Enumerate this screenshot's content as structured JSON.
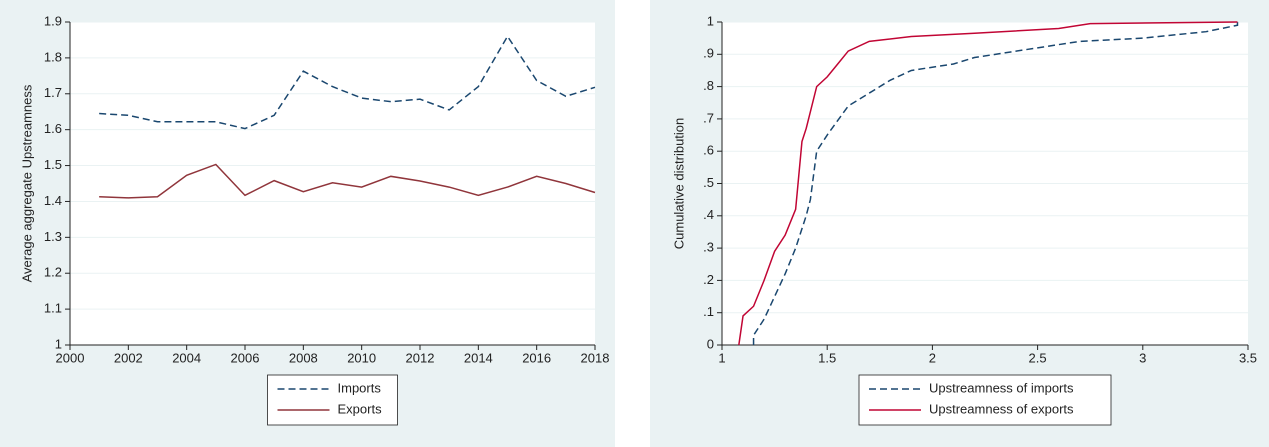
{
  "chart_data": [
    {
      "type": "line",
      "ylabel": "Average aggregate Upstreamness",
      "x": [
        2001,
        2002,
        2003,
        2004,
        2005,
        2006,
        2007,
        2008,
        2009,
        2010,
        2011,
        2012,
        2013,
        2014,
        2015,
        2016,
        2017,
        2018
      ],
      "xlim": [
        2000,
        2018
      ],
      "xticks": [
        2000,
        2002,
        2004,
        2006,
        2008,
        2010,
        2012,
        2014,
        2016,
        2018
      ],
      "ylim": [
        1,
        1.9
      ],
      "yticks": [
        1,
        1.1,
        1.2,
        1.3,
        1.4,
        1.5,
        1.6,
        1.7,
        1.8,
        1.9
      ],
      "grid": true,
      "series": [
        {
          "name": "Imports",
          "color": "#1a476f",
          "dash": true,
          "values": [
            1.645,
            1.64,
            1.622,
            1.622,
            1.622,
            1.603,
            1.64,
            1.763,
            1.72,
            1.688,
            1.678,
            1.685,
            1.655,
            1.72,
            1.86,
            1.737,
            1.693,
            1.718
          ]
        },
        {
          "name": "Exports",
          "color": "#90353b",
          "dash": false,
          "values": [
            1.413,
            1.41,
            1.413,
            1.473,
            1.503,
            1.417,
            1.458,
            1.427,
            1.452,
            1.44,
            1.47,
            1.457,
            1.44,
            1.417,
            1.44,
            1.47,
            1.45,
            1.425
          ]
        }
      ]
    },
    {
      "type": "line",
      "ylabel": "Cumulative distribution",
      "xlim": [
        1,
        3.5
      ],
      "xticks": [
        1,
        1.5,
        2,
        2.5,
        3,
        3.5
      ],
      "ylim": [
        0,
        1
      ],
      "yticks": [
        0,
        {
          "value": 0.1,
          "label": ".1"
        },
        {
          "value": 0.2,
          "label": ".2"
        },
        {
          "value": 0.3,
          "label": ".3"
        },
        {
          "value": 0.4,
          "label": ".4"
        },
        {
          "value": 0.5,
          "label": ".5"
        },
        {
          "value": 0.6,
          "label": ".6"
        },
        {
          "value": 0.7,
          "label": ".7"
        },
        {
          "value": 0.8,
          "label": ".8"
        },
        {
          "value": 0.9,
          "label": ".9"
        },
        1
      ],
      "grid": true,
      "series": [
        {
          "name": "Upstreamness of imports",
          "color": "#1a476f",
          "dash": true,
          "x": [
            1.15,
            1.15,
            1.2,
            1.25,
            1.3,
            1.35,
            1.4,
            1.42,
            1.45,
            1.5,
            1.6,
            1.7,
            1.8,
            1.9,
            2.1,
            2.2,
            2.5,
            2.7,
            3.0,
            3.3,
            3.45,
            3.45
          ],
          "values": [
            0,
            0.03,
            0.08,
            0.15,
            0.22,
            0.3,
            0.4,
            0.45,
            0.6,
            0.65,
            0.74,
            0.78,
            0.82,
            0.85,
            0.87,
            0.89,
            0.92,
            0.94,
            0.95,
            0.97,
            0.99,
            1
          ]
        },
        {
          "name": "Upstreamness of exports",
          "color": "#c10534",
          "dash": false,
          "x": [
            1.08,
            1.1,
            1.15,
            1.2,
            1.25,
            1.3,
            1.35,
            1.38,
            1.4,
            1.45,
            1.5,
            1.55,
            1.6,
            1.7,
            1.9,
            2.2,
            2.6,
            2.75,
            3.45
          ],
          "values": [
            0,
            0.09,
            0.12,
            0.2,
            0.29,
            0.34,
            0.42,
            0.63,
            0.67,
            0.8,
            0.83,
            0.87,
            0.91,
            0.94,
            0.955,
            0.965,
            0.98,
            0.995,
            1
          ]
        }
      ]
    }
  ]
}
